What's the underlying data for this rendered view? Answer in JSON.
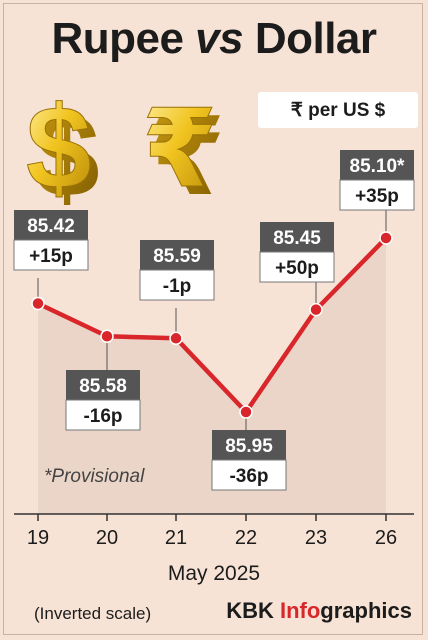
{
  "header": {
    "title_part1": "Rupee ",
    "title_vs": "vs",
    "title_part2": " Dollar",
    "unit_label": "₹ per US $"
  },
  "icons": {
    "dollar": "dollar-sign-3d-icon",
    "rupee": "rupee-sign-3d-icon"
  },
  "chart_data": {
    "type": "line",
    "xlabel": "May 2025",
    "ylabel": "",
    "inverted_y": true,
    "x": [
      "19",
      "20",
      "21",
      "22",
      "23",
      "26"
    ],
    "values": [
      85.42,
      85.58,
      85.59,
      85.95,
      85.45,
      85.1
    ],
    "value_labels": [
      "85.42",
      "85.58",
      "85.59",
      "85.95",
      "85.45",
      "85.10*"
    ],
    "change_labels": [
      "+15p",
      "-16p",
      "-1p",
      "-36p",
      "+50p",
      "+35p"
    ],
    "annotation": "*Provisional",
    "scale_note": "(Inverted scale)",
    "colors": {
      "line": "#d9262b",
      "area": "#e8d3c7",
      "label_dark": "#555555",
      "label_light": "#ffffff"
    }
  },
  "footer": {
    "credit_prefix": "KBK ",
    "credit_highlight": "Info",
    "credit_suffix": "graphics"
  }
}
